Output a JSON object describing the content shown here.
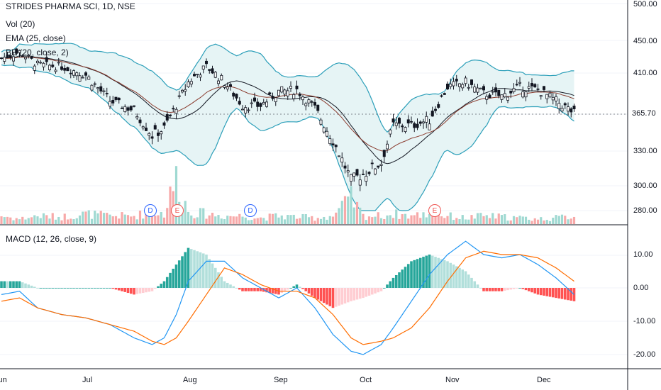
{
  "header": {
    "symbol_line": "STRIDES PHARMA SCI, 1D, NSE",
    "indicators": [
      "Vol (20)",
      "EMA (25, close)",
      "BB (20, close, 2)"
    ],
    "macd_label": "MACD (12, 26, close, 9)"
  },
  "price_axis": {
    "ticks": [
      "500.00",
      "450.00",
      "410.00",
      "365.70",
      "330.00",
      "300.00",
      "280.00"
    ],
    "last_price": "365.70"
  },
  "macd_axis": {
    "ticks": [
      "10.00",
      "0.00",
      "-10.00",
      "-20.00"
    ]
  },
  "time_axis": {
    "ticks": [
      "Jun",
      "Jul",
      "Aug",
      "Sep",
      "Oct",
      "Nov",
      "Dec"
    ]
  },
  "events": [
    {
      "type": "d",
      "label": "D"
    },
    {
      "type": "e",
      "label": "E"
    },
    {
      "type": "d",
      "label": "D"
    },
    {
      "type": "e",
      "label": "E"
    }
  ],
  "colors": {
    "up": "#26a69a",
    "down": "#f23645",
    "candle": "#131722",
    "bb": "#2c9fb9",
    "bb_fill": "#e6f4f5",
    "ema": "#8a3b2e",
    "macd": "#2196f3",
    "signal": "#ff6d00"
  },
  "chart_data": {
    "type": "candlestick",
    "anchors": [
      {
        "t": 0,
        "close": 428,
        "vol": 8,
        "macd": -2.0,
        "signal": -4.0
      },
      {
        "t": 6,
        "close": 436,
        "vol": 5,
        "macd": -1.0,
        "signal": -3.0
      },
      {
        "t": 12,
        "close": 420,
        "vol": 8,
        "macd": -6.0,
        "signal": -6.0
      },
      {
        "t": 20,
        "close": 418,
        "vol": 7,
        "macd": -8.0,
        "signal": -8.0
      },
      {
        "t": 28,
        "close": 408,
        "vol": 10,
        "macd": -9.0,
        "signal": -9.0
      },
      {
        "t": 36,
        "close": 380,
        "vol": 8,
        "macd": -11.0,
        "signal": -11.0
      },
      {
        "t": 44,
        "close": 370,
        "vol": 8,
        "macd": -15.0,
        "signal": -13.0
      },
      {
        "t": 50,
        "close": 345,
        "vol": 12,
        "macd": -17.0,
        "signal": -16.0
      },
      {
        "t": 54,
        "close": 352,
        "vol": 10,
        "macd": -15.0,
        "signal": -17.0
      },
      {
        "t": 58,
        "close": 375,
        "vol": 45,
        "macd": -8.0,
        "signal": -15.0
      },
      {
        "t": 62,
        "close": 400,
        "vol": 12,
        "macd": 2.0,
        "signal": -10.0
      },
      {
        "t": 68,
        "close": 418,
        "vol": 10,
        "macd": 8.0,
        "signal": -2.0
      },
      {
        "t": 74,
        "close": 400,
        "vol": 8,
        "macd": 8.0,
        "signal": 6.0
      },
      {
        "t": 80,
        "close": 375,
        "vol": 8,
        "macd": 3.0,
        "signal": 4.0
      },
      {
        "t": 86,
        "close": 375,
        "vol": 6,
        "macd": 0.0,
        "signal": 1.0
      },
      {
        "t": 92,
        "close": 390,
        "vol": 8,
        "macd": -3.0,
        "signal": -1.0
      },
      {
        "t": 98,
        "close": 392,
        "vol": 7,
        "macd": 0.0,
        "signal": -1.0
      },
      {
        "t": 104,
        "close": 372,
        "vol": 6,
        "macd": -6.0,
        "signal": -3.0
      },
      {
        "t": 110,
        "close": 340,
        "vol": 8,
        "macd": -14.0,
        "signal": -8.0
      },
      {
        "t": 116,
        "close": 305,
        "vol": 25,
        "macd": -19.0,
        "signal": -15.0
      },
      {
        "t": 120,
        "close": 310,
        "vol": 8,
        "macd": -20.0,
        "signal": -17.0
      },
      {
        "t": 126,
        "close": 320,
        "vol": 8,
        "macd": -17.0,
        "signal": -16.0
      },
      {
        "t": 130,
        "close": 355,
        "vol": 10,
        "macd": -12.0,
        "signal": -15.0
      },
      {
        "t": 136,
        "close": 355,
        "vol": 8,
        "macd": -4.0,
        "signal": -12.0
      },
      {
        "t": 142,
        "close": 360,
        "vol": 10,
        "macd": 4.0,
        "signal": -6.0
      },
      {
        "t": 148,
        "close": 395,
        "vol": 8,
        "macd": 10.0,
        "signal": 2.0
      },
      {
        "t": 154,
        "close": 400,
        "vol": 6,
        "macd": 14.0,
        "signal": 9.0
      },
      {
        "t": 160,
        "close": 388,
        "vol": 8,
        "macd": 10.0,
        "signal": 11.0
      },
      {
        "t": 166,
        "close": 385,
        "vol": 7,
        "macd": 9.0,
        "signal": 10.0
      },
      {
        "t": 172,
        "close": 395,
        "vol": 6,
        "macd": 10.0,
        "signal": 10.0
      },
      {
        "t": 178,
        "close": 392,
        "vol": 5,
        "macd": 7.0,
        "signal": 9.0
      },
      {
        "t": 184,
        "close": 380,
        "vol": 6,
        "macd": 3.0,
        "signal": 6.0
      },
      {
        "t": 190,
        "close": 367,
        "vol": 8,
        "macd": -2.0,
        "signal": 2.0
      }
    ]
  }
}
